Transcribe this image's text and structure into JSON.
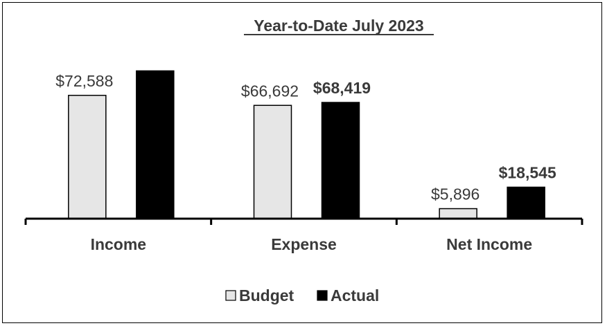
{
  "chart_data": {
    "type": "bar",
    "title": "Year-to-Date July 2023",
    "xlabel": "",
    "ylabel": "",
    "categories": [
      "Income",
      "Expense",
      "Net Income"
    ],
    "series": [
      {
        "name": "Budget",
        "values": [
          72588,
          66692,
          5896
        ],
        "labels": [
          "$72,588",
          "$66,692",
          "$5,896"
        ],
        "color": "#e6e6e6",
        "label_bold": false
      },
      {
        "name": "Actual",
        "values": [
          87000,
          68419,
          18545
        ],
        "labels": [
          "",
          "$68,419",
          "$18,545"
        ],
        "color": "#000000",
        "label_bold": true
      }
    ],
    "ylim": [
      0,
      100000
    ],
    "grid": false,
    "legend_position": "bottom"
  }
}
